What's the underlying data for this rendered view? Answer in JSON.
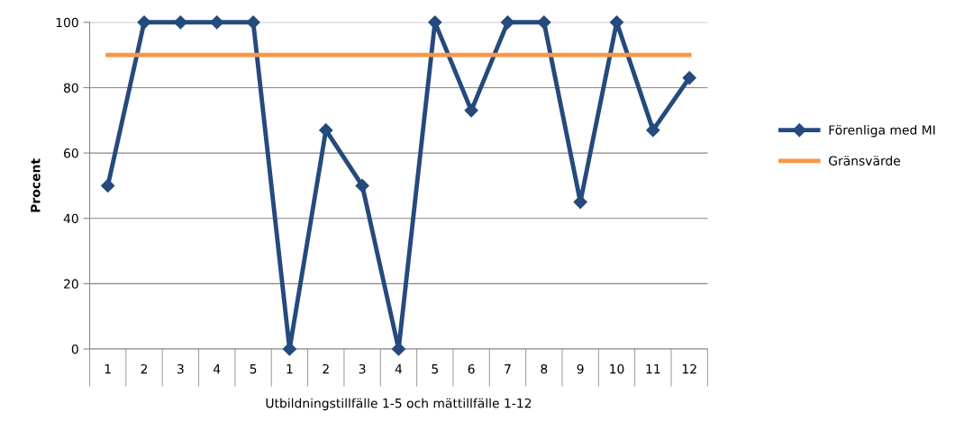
{
  "chart_data": {
    "type": "line",
    "ylabel": "Procent",
    "xlabel": "Utbildningstillfälle 1-5 och mättillfälle 1-12",
    "categories": [
      "1",
      "2",
      "3",
      "4",
      "5",
      "1",
      "2",
      "3",
      "4",
      "5",
      "6",
      "7",
      "8",
      "9",
      "10",
      "11",
      "12"
    ],
    "series": [
      {
        "name": "Förenliga med MI",
        "color": "#254a7c",
        "marker": "diamond",
        "values": [
          50,
          100,
          100,
          100,
          100,
          0,
          67,
          50,
          0,
          100,
          73,
          100,
          100,
          45,
          100,
          67,
          83
        ]
      },
      {
        "name": "Gränsvärde",
        "color": "#f79646",
        "marker": "none",
        "values": [
          90,
          90,
          90,
          90,
          90,
          90,
          90,
          90,
          90,
          90,
          90,
          90,
          90,
          90,
          90,
          90,
          90
        ]
      }
    ],
    "ylim": [
      0,
      100
    ],
    "yticks": [
      0,
      20,
      40,
      60,
      80,
      100
    ],
    "grid": "y",
    "legend": "right"
  }
}
